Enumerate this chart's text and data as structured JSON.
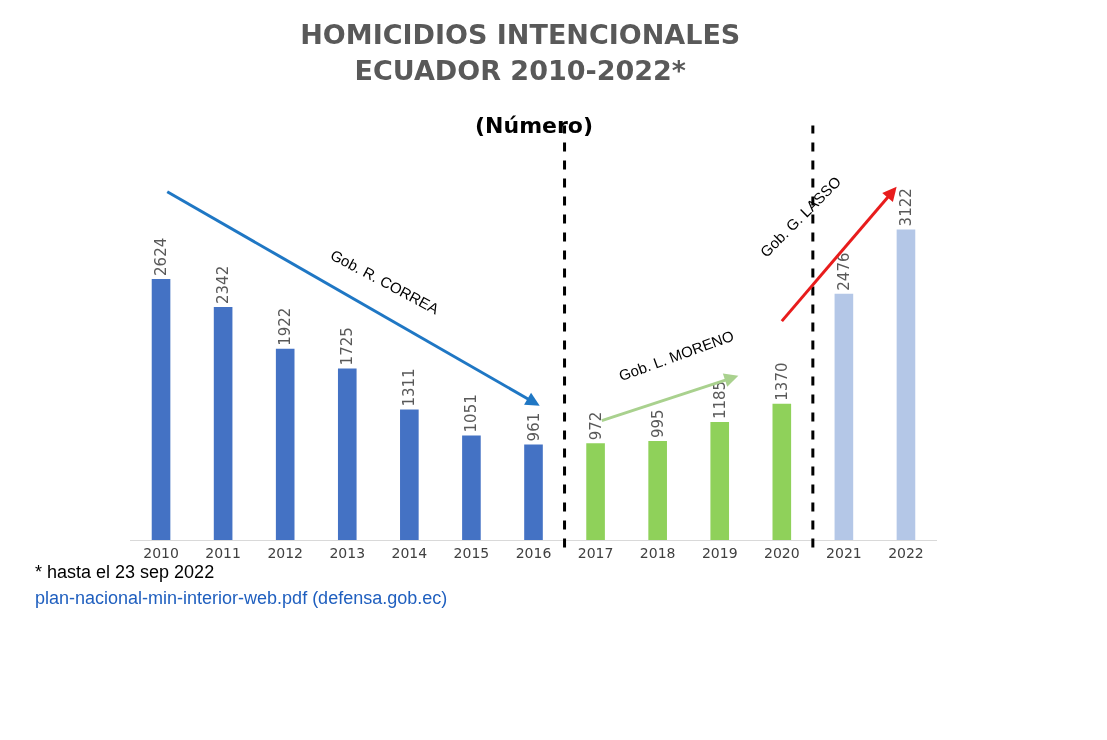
{
  "chart_data": {
    "type": "bar",
    "title": "HOMICIDIOS INTENCIONALES\nECUADOR 2010-2022*",
    "subtitle": "(Número)",
    "categories": [
      "2010",
      "2011",
      "2012",
      "2013",
      "2014",
      "2015",
      "2016",
      "2017",
      "2018",
      "2019",
      "2020",
      "2021",
      "2022"
    ],
    "values": [
      2624,
      2342,
      1922,
      1725,
      1311,
      1051,
      961,
      972,
      995,
      1185,
      1370,
      2476,
      3122
    ],
    "colors": [
      "#4472c4",
      "#4472c4",
      "#4472c4",
      "#4472c4",
      "#4472c4",
      "#4472c4",
      "#4472c4",
      "#8fd15a",
      "#8fd15a",
      "#8fd15a",
      "#8fd15a",
      "#b4c7e7",
      "#b4c7e7"
    ],
    "data_labels": true,
    "grid": false,
    "annotations": [
      "Gob. R. CORREA",
      "Gob. L. MORENO",
      "Gob. G. LASSO",
      "* hasta el 23 sep 2022",
      "plan-nacional-min-interior-web.pdf (defensa.gob.ec)"
    ]
  }
}
